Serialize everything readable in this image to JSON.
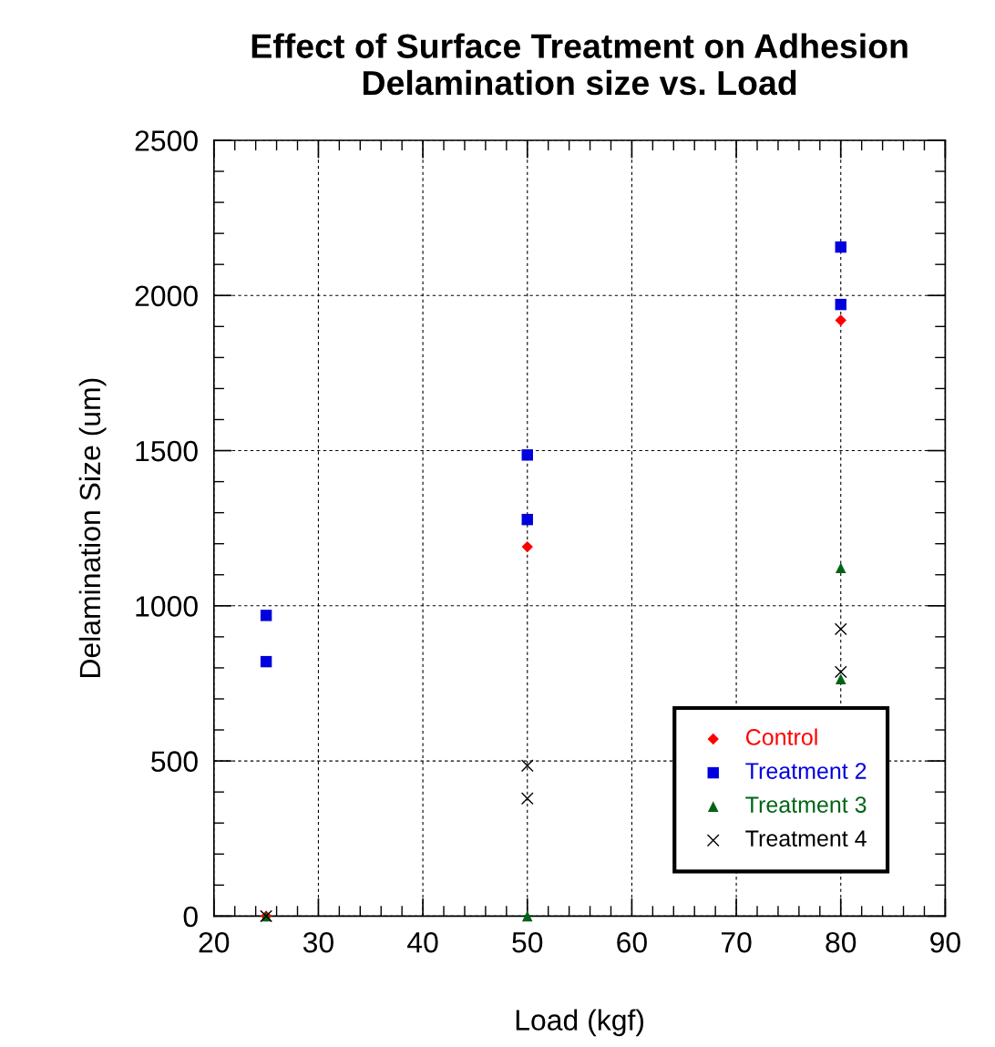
{
  "chart_data": {
    "type": "scatter",
    "title": "Effect of Surface Treatment on Adhesion\nDelamination size vs. Load",
    "xlabel": "Load (kgf)",
    "ylabel": "Delamination Size (um)",
    "xlim": [
      20,
      90
    ],
    "xticks": [
      20,
      30,
      40,
      50,
      60,
      70,
      80,
      90
    ],
    "ylim": [
      0,
      2500
    ],
    "yticks": [
      0,
      500,
      1000,
      1500,
      2000,
      2500
    ],
    "grid": true,
    "legend": "bottom right",
    "series": [
      {
        "name": "Control",
        "color": "#ff0000",
        "marker": "diamond",
        "x": [
          25,
          50,
          80
        ],
        "values": [
          0,
          1190,
          1920
        ]
      },
      {
        "name": "Treatment 2",
        "color": "#0000dd",
        "marker": "square",
        "x": [
          25,
          25,
          50,
          50,
          80,
          80
        ],
        "values": [
          969,
          820,
          1486,
          1278,
          2156,
          1971
        ]
      },
      {
        "name": "Treatment 3",
        "color": "#006414",
        "marker": "triangle",
        "x": [
          25,
          50,
          80,
          80
        ],
        "values": [
          0,
          0,
          1122,
          764
        ]
      },
      {
        "name": "Treatment 4",
        "color": "#000000",
        "marker": "cross",
        "x": [
          25,
          50,
          50,
          80,
          80
        ],
        "values": [
          0,
          485,
          379,
          925,
          787
        ]
      }
    ]
  }
}
